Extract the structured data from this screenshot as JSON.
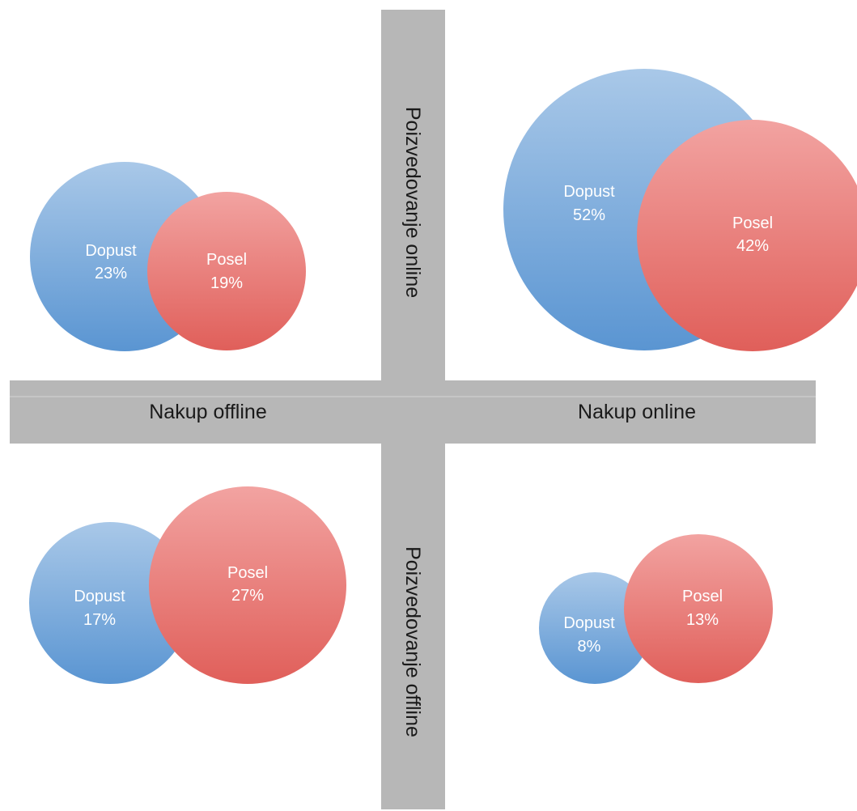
{
  "axes": {
    "top_label": "Poizvedovanje online",
    "bottom_label": "Poizvedovanje offline",
    "left_label": "Nakup offline",
    "right_label": "Nakup online"
  },
  "colors": {
    "dopust_light": "#a9c8e8",
    "dopust_dark": "#5a95d2",
    "posel_light": "#f2a3a1",
    "posel_dark": "#e05f5a",
    "axis": "#b7b7b7"
  },
  "quadrants": [
    {
      "id": "top-left",
      "items": [
        {
          "label": "Dopust",
          "value": "23%"
        },
        {
          "label": "Posel",
          "value": "19%"
        }
      ]
    },
    {
      "id": "top-right",
      "items": [
        {
          "label": "Dopust",
          "value": "52%"
        },
        {
          "label": "Posel",
          "value": "42%"
        }
      ]
    },
    {
      "id": "bottom-left",
      "items": [
        {
          "label": "Dopust",
          "value": "17%"
        },
        {
          "label": "Posel",
          "value": "27%"
        }
      ]
    },
    {
      "id": "bottom-right",
      "items": [
        {
          "label": "Dopust",
          "value": "8%"
        },
        {
          "label": "Posel",
          "value": "13%"
        }
      ]
    }
  ]
}
